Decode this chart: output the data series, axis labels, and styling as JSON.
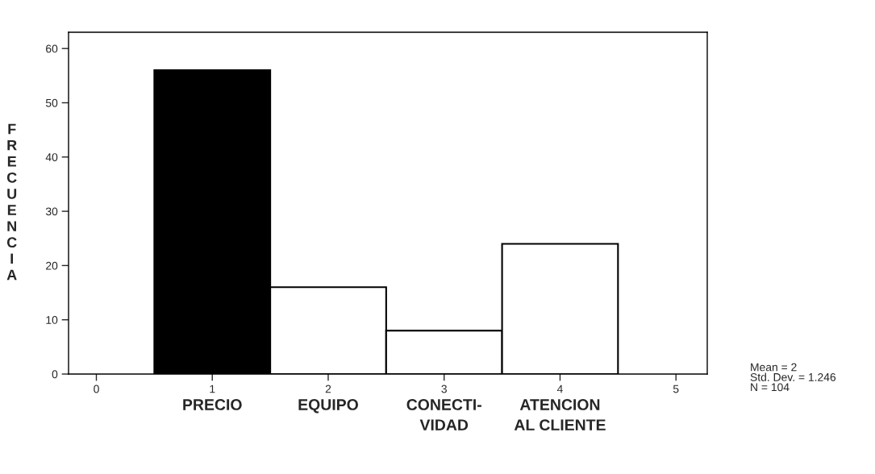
{
  "chart_data": {
    "type": "histogram",
    "ylabel": "FRECUENCIA",
    "bins": [
      0.5,
      1.5,
      2.5,
      3.5,
      4.5
    ],
    "values": [
      56,
      16,
      8,
      24
    ],
    "colors": [
      "#000000",
      "#ffffff",
      "#ffffff",
      "#ffffff"
    ],
    "xlim": [
      -0.24,
      5.27
    ],
    "xticks": [
      0,
      1,
      2,
      3,
      4,
      5
    ],
    "ylim": [
      0,
      63
    ],
    "yticks": [
      0,
      10,
      20,
      30,
      40,
      50,
      60
    ],
    "grid": false,
    "annotations": [
      "PRECIO",
      "EQUIPO",
      "CONECTI-\nVIDAD",
      "ATENCION\nAL CLIENTE",
      "Mean = 2\nStd. Dev. = 1.246\nN = 104"
    ]
  }
}
